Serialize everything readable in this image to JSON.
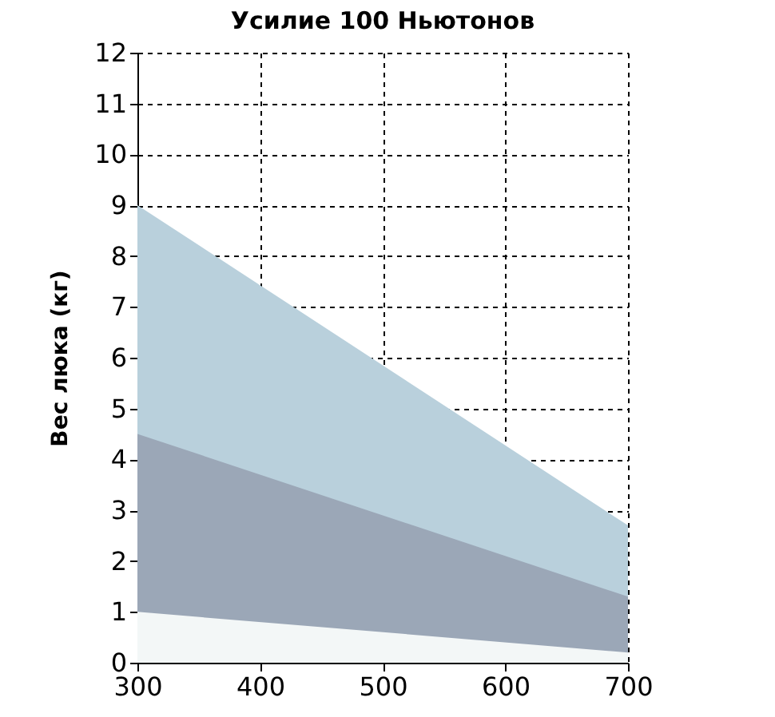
{
  "chart_data": {
    "type": "area",
    "title": "Усилие 100  Ньютонов",
    "ylabel": "Вес люка (кг)",
    "x": [
      300,
      700
    ],
    "series": [
      {
        "color": "#b9d0dc",
        "values": [
          9,
          2.7
        ]
      },
      {
        "color": "#9ba7b7",
        "values": [
          4.5,
          1.3
        ]
      },
      {
        "color": "#f3f7f7",
        "values": [
          1,
          0.2
        ]
      }
    ],
    "xlim": [
      300,
      700
    ],
    "xticks": [
      300,
      400,
      500,
      600,
      700
    ],
    "ylim": [
      0,
      12
    ],
    "yticks": [
      0,
      1,
      2,
      3,
      4,
      5,
      6,
      7,
      8,
      9,
      10,
      11,
      12
    ],
    "grid": true,
    "line_style": "dashed"
  }
}
